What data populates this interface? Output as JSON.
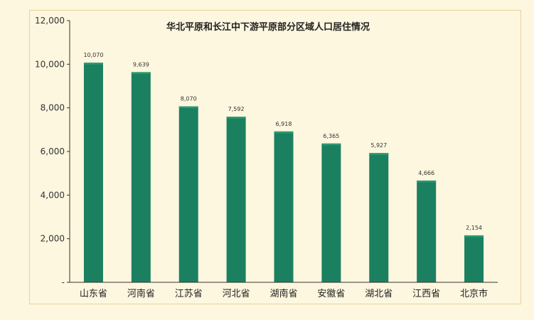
{
  "chart_data": {
    "type": "bar",
    "title": "华北平原和长江中下游平原部分区域人口居住情况",
    "categories": [
      "山东省",
      "河南省",
      "江苏省",
      "河北省",
      "湖南省",
      "安徽省",
      "湖北省",
      "江西省",
      "北京市"
    ],
    "values": [
      10070,
      9639,
      8070,
      7592,
      6918,
      6365,
      5927,
      4666,
      2154
    ],
    "data_labels": [
      "10,070",
      "9,639",
      "8,070",
      "7,592",
      "6,918",
      "6,365",
      "5,927",
      "4,666",
      "2,154"
    ],
    "yticks": [
      0,
      2000,
      4000,
      6000,
      8000,
      10000,
      12000
    ],
    "ytick_labels": [
      "-",
      "2,000",
      "4,000",
      "6,000",
      "8,000",
      "10,000",
      "12,000"
    ],
    "ylim": [
      0,
      12000
    ],
    "xlabel": "",
    "ylabel": "",
    "grid": false,
    "legend": "none",
    "colors": {
      "bar": "#1a8060",
      "bar_highlight": "#2a9a72",
      "axis": "#333333",
      "background": "#fdf7df",
      "border": "#e6d39c"
    }
  }
}
